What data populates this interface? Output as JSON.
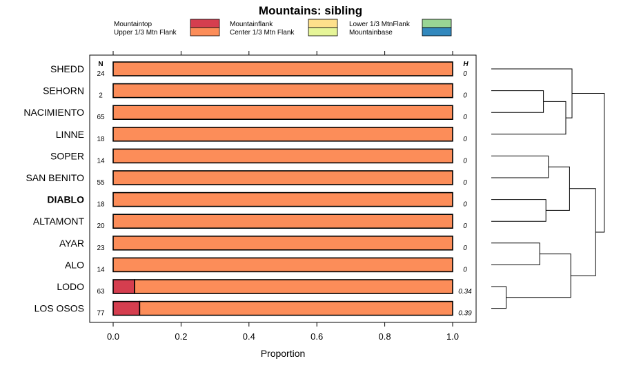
{
  "chart_data": {
    "type": "bar",
    "subtype": "stacked-horizontal-proportion",
    "title": "Mountains: sibling",
    "xlabel": "Proportion",
    "xlim": [
      0,
      1
    ],
    "xticks": [
      "0.0",
      "0.2",
      "0.4",
      "0.6",
      "0.8",
      "1.0"
    ],
    "n_header": "N",
    "h_header": "H",
    "legend": [
      {
        "name": "Mountaintop",
        "color": "#d53e4f"
      },
      {
        "name": "Upper 1/3 Mtn Flank",
        "color": "#fc8d59"
      },
      {
        "name": "Mountainflank",
        "color": "#fee08b"
      },
      {
        "name": "Center 1/3 Mtn Flank",
        "color": "#e6f598"
      },
      {
        "name": "Lower 1/3 MtnFlank",
        "color": "#99d594"
      },
      {
        "name": "Mountainbase",
        "color": "#3288bd"
      }
    ],
    "rows": [
      {
        "label": "SHEDD",
        "n": "24",
        "h": "0",
        "bold": false,
        "segments": [
          {
            "series": "Upper 1/3 Mtn Flank",
            "value": 1.0
          }
        ]
      },
      {
        "label": "SEHORN",
        "n": "2",
        "h": "0",
        "bold": false,
        "segments": [
          {
            "series": "Upper 1/3 Mtn Flank",
            "value": 1.0
          }
        ]
      },
      {
        "label": "NACIMIENTO",
        "n": "65",
        "h": "0",
        "bold": false,
        "segments": [
          {
            "series": "Upper 1/3 Mtn Flank",
            "value": 1.0
          }
        ]
      },
      {
        "label": "LINNE",
        "n": "18",
        "h": "0",
        "bold": false,
        "segments": [
          {
            "series": "Upper 1/3 Mtn Flank",
            "value": 1.0
          }
        ]
      },
      {
        "label": "SOPER",
        "n": "14",
        "h": "0",
        "bold": false,
        "segments": [
          {
            "series": "Upper 1/3 Mtn Flank",
            "value": 1.0
          }
        ]
      },
      {
        "label": "SAN BENITO",
        "n": "55",
        "h": "0",
        "bold": false,
        "segments": [
          {
            "series": "Upper 1/3 Mtn Flank",
            "value": 1.0
          }
        ]
      },
      {
        "label": "DIABLO",
        "n": "18",
        "h": "0",
        "bold": true,
        "segments": [
          {
            "series": "Upper 1/3 Mtn Flank",
            "value": 1.0
          }
        ]
      },
      {
        "label": "ALTAMONT",
        "n": "20",
        "h": "0",
        "bold": false,
        "segments": [
          {
            "series": "Upper 1/3 Mtn Flank",
            "value": 1.0
          }
        ]
      },
      {
        "label": "AYAR",
        "n": "23",
        "h": "0",
        "bold": false,
        "segments": [
          {
            "series": "Upper 1/3 Mtn Flank",
            "value": 1.0
          }
        ]
      },
      {
        "label": "ALO",
        "n": "14",
        "h": "0",
        "bold": false,
        "segments": [
          {
            "series": "Upper 1/3 Mtn Flank",
            "value": 1.0
          }
        ]
      },
      {
        "label": "LODO",
        "n": "63",
        "h": "0.34",
        "bold": false,
        "segments": [
          {
            "series": "Mountaintop",
            "value": 0.063
          },
          {
            "series": "Upper 1/3 Mtn Flank",
            "value": 0.937
          }
        ]
      },
      {
        "label": "LOS OSOS",
        "n": "77",
        "h": "0.39",
        "bold": false,
        "segments": [
          {
            "series": "Mountaintop",
            "value": 0.078
          },
          {
            "series": "Upper 1/3 Mtn Flank",
            "value": 0.922
          }
        ]
      }
    ],
    "dendrogram": {
      "leaf_order": [
        "SHEDD",
        "SEHORN",
        "NACIMIENTO",
        "LINNE",
        "SOPER",
        "SAN BENITO",
        "DIABLO",
        "ALTAMONT",
        "AYAR",
        "ALO",
        "LODO",
        "LOS OSOS"
      ],
      "merges": [
        {
          "a": "leaf:1",
          "b": "leaf:2",
          "height": 0.42
        },
        {
          "a": "node:0",
          "b": "leaf:3",
          "height": 0.6
        },
        {
          "a": "leaf:0",
          "b": "node:1",
          "height": 0.65
        },
        {
          "a": "leaf:4",
          "b": "leaf:5",
          "height": 0.46
        },
        {
          "a": "leaf:6",
          "b": "leaf:7",
          "height": 0.44
        },
        {
          "a": "node:3",
          "b": "node:4",
          "height": 0.63
        },
        {
          "a": "leaf:8",
          "b": "leaf:9",
          "height": 0.39
        },
        {
          "a": "leaf:10",
          "b": "leaf:11",
          "height": 0.12
        },
        {
          "a": "node:6",
          "b": "node:7",
          "height": 0.64
        },
        {
          "a": "node:5",
          "b": "node:8",
          "height": 0.84
        },
        {
          "a": "node:2",
          "b": "node:9",
          "height": 0.91
        }
      ]
    }
  }
}
